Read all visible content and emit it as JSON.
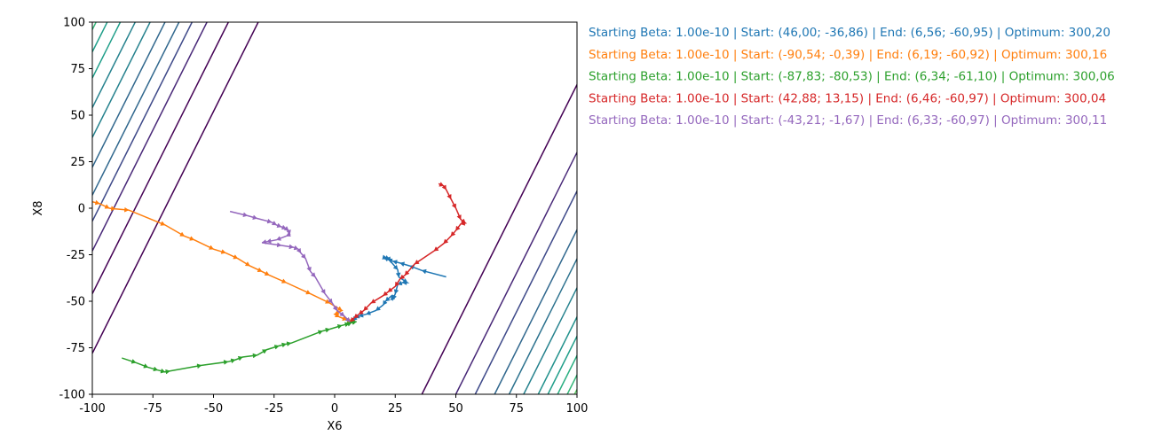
{
  "chart_data": {
    "type": "line",
    "chart_kind": "contour plot with optimization trajectories",
    "xlabel": "X6",
    "ylabel": "X8",
    "xlim": [
      -100,
      100
    ],
    "ylim": [
      -100,
      100
    ],
    "x_ticks": [
      "-100",
      "-75",
      "-50",
      "-25",
      "0",
      "25",
      "50",
      "75",
      "100"
    ],
    "y_ticks": [
      "-100",
      "-75",
      "-50",
      "-25",
      "0",
      "25",
      "50",
      "75",
      "100"
    ],
    "grid": false,
    "legend_position": "right, outside plot",
    "contours": {
      "orientation_slope": 2.6,
      "level_line_intercepts_left": [
        -92,
        -63,
        -34,
        -5,
        22,
        46,
        68,
        87,
        104
      ],
      "level_line_intercepts_right": [
        -92,
        -63,
        -34,
        -5,
        22,
        46,
        68,
        87,
        104
      ],
      "colors": [
        "#440154",
        "#472d7b",
        "#3b528b",
        "#2c728e",
        "#21918c",
        "#28ae80",
        "#5ec962",
        "#addc30",
        "#fde725"
      ]
    },
    "series": [
      {
        "name": "Starting Beta: 1.00e-10 | Start: (46,00; -36,86) | End: (6,56; -60,95) | Optimum: 300,20",
        "color": "#1f77b4",
        "points": [
          [
            46,
            -36.9
          ],
          [
            36,
            -33.5
          ],
          [
            31,
            -31
          ],
          [
            27,
            -29.5
          ],
          [
            24,
            -28.5
          ],
          [
            22,
            -27.5
          ],
          [
            20.5,
            -26.5
          ],
          [
            21.5,
            -26.8
          ],
          [
            22.5,
            -27.5
          ],
          [
            23,
            -28.5
          ],
          [
            26,
            -33
          ],
          [
            26.5,
            -37
          ],
          [
            30,
            -40
          ],
          [
            28,
            -40
          ],
          [
            26,
            -41
          ],
          [
            25,
            -46
          ],
          [
            24,
            -49
          ],
          [
            23.5,
            -47
          ],
          [
            21,
            -50
          ],
          [
            20,
            -52
          ],
          [
            17,
            -55
          ],
          [
            13,
            -57
          ],
          [
            10,
            -58
          ],
          [
            8.5,
            -59
          ],
          [
            7.5,
            -60.5
          ],
          [
            6.6,
            -61
          ]
        ]
      },
      {
        "name": "Starting Beta: 1.00e-10 | Start: (-90,54; -0,39) | End: (6,19; -60,92) | Optimum: 300,16",
        "color": "#ff7f0e",
        "points": [
          [
            -100,
            3.5
          ],
          [
            -97,
            2.5
          ],
          [
            -93,
            0
          ],
          [
            -90.5,
            -0.4
          ],
          [
            -85,
            -1
          ],
          [
            -70,
            -9
          ],
          [
            -62,
            -15
          ],
          [
            -58,
            -17
          ],
          [
            -50,
            -22
          ],
          [
            -45,
            -24
          ],
          [
            -40,
            -27
          ],
          [
            -35,
            -31
          ],
          [
            -30,
            -34
          ],
          [
            -27,
            -36
          ],
          [
            -20,
            -40
          ],
          [
            -10,
            -46
          ],
          [
            -2,
            -51
          ],
          [
            3,
            -55
          ],
          [
            0,
            -57
          ],
          [
            2,
            -58.5
          ],
          [
            5,
            -60
          ],
          [
            7,
            -60.5
          ],
          [
            6.2,
            -60.9
          ]
        ]
      },
      {
        "name": "Starting Beta: 1.00e-10 | Start: (-87,83; -80,53) | End: (6,34; -61,10) | Optimum: 300,06",
        "color": "#2ca02c",
        "points": [
          [
            -87.8,
            -80.5
          ],
          [
            -82,
            -83
          ],
          [
            -77,
            -85.5
          ],
          [
            -73,
            -87
          ],
          [
            -70,
            -88
          ],
          [
            -68,
            -87.5
          ],
          [
            -55,
            -84.5
          ],
          [
            -44,
            -82.5
          ],
          [
            -41,
            -81.5
          ],
          [
            -38,
            -80
          ],
          [
            -32,
            -79
          ],
          [
            -28,
            -76
          ],
          [
            -23,
            -74
          ],
          [
            -20,
            -73
          ],
          [
            -18,
            -72.5
          ],
          [
            -5,
            -66
          ],
          [
            -2,
            -65
          ],
          [
            3,
            -63
          ],
          [
            6,
            -62
          ],
          [
            7,
            -61.5
          ],
          [
            9,
            -61
          ],
          [
            6.3,
            -61.1
          ]
        ]
      },
      {
        "name": "Starting Beta: 1.00e-10 | Start: (42,88; 13,15) | End: (6,46; -60,97) | Optimum: 300,04",
        "color": "#d62728",
        "points": [
          [
            42.9,
            13.2
          ],
          [
            45,
            12
          ],
          [
            46,
            10
          ],
          [
            48,
            5
          ],
          [
            50,
            0
          ],
          [
            52,
            -6
          ],
          [
            54,
            -8
          ],
          [
            52,
            -8.5
          ],
          [
            50,
            -12
          ],
          [
            48,
            -15
          ],
          [
            45,
            -19
          ],
          [
            41,
            -23
          ],
          [
            33,
            -30
          ],
          [
            29,
            -36
          ],
          [
            27,
            -38
          ],
          [
            25,
            -42
          ],
          [
            22,
            -45
          ],
          [
            20,
            -47
          ],
          [
            15,
            -51
          ],
          [
            12,
            -55
          ],
          [
            10,
            -57
          ],
          [
            8,
            -59
          ],
          [
            6.5,
            -61
          ]
        ]
      },
      {
        "name": "Starting Beta: 1.00e-10 | Start: (-43,21; -1,67) | End: (6,33; -60,97) | Optimum: 300,11",
        "color": "#9467bd",
        "points": [
          [
            -43.2,
            -1.7
          ],
          [
            -36,
            -4
          ],
          [
            -32,
            -5.5
          ],
          [
            -26,
            -7.5
          ],
          [
            -24,
            -9
          ],
          [
            -22,
            -10
          ],
          [
            -20,
            -11
          ],
          [
            -19,
            -12
          ],
          [
            -18.5,
            -14
          ],
          [
            -20,
            -15
          ],
          [
            -24,
            -17
          ],
          [
            -28,
            -18
          ],
          [
            -30,
            -18.5
          ],
          [
            -22,
            -20
          ],
          [
            -17,
            -21
          ],
          [
            -15,
            -22
          ],
          [
            -14,
            -24
          ],
          [
            -12,
            -27
          ],
          [
            -10,
            -34
          ],
          [
            -8,
            -37
          ],
          [
            -4,
            -46
          ],
          [
            -1,
            -51
          ],
          [
            1,
            -55
          ],
          [
            4,
            -58
          ],
          [
            6.3,
            -61
          ]
        ]
      }
    ]
  }
}
